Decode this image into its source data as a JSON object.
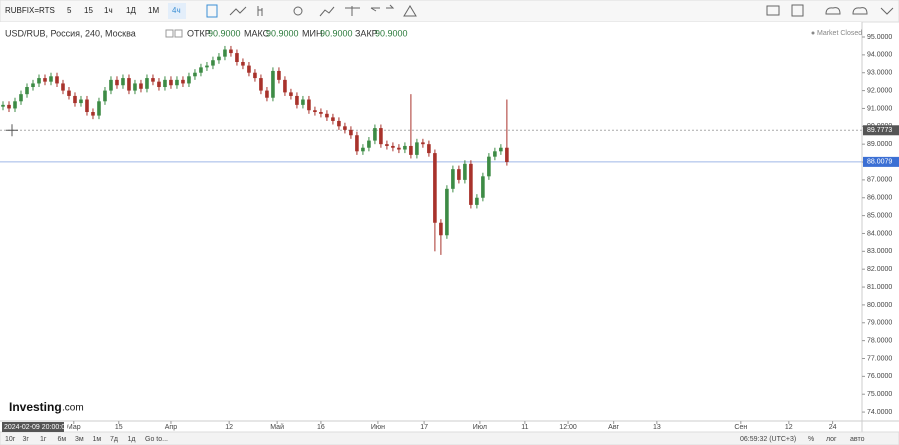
{
  "toolbar": {
    "symbol": "RUBFIX=RTS",
    "intervals": [
      "5",
      "15",
      "1ч",
      "1Д",
      "1М",
      "4ч"
    ]
  },
  "header": {
    "instrument": "USD/RUB, Россия, 240, Москва",
    "open_label": "ОТКР",
    "open": "90.9000",
    "high_label": "МАКС",
    "high": "90.9000",
    "low_label": "МИН",
    "low": "90.9000",
    "close_label": "ЗАКР",
    "close": "90.9000",
    "status": "Market Closed"
  },
  "footer": {
    "ranges": [
      "10г",
      "3г",
      "1г",
      "6м",
      "3м",
      "1м",
      "7д",
      "1д"
    ],
    "goto": "Go to...",
    "clock": "06:59:32 (UTC+3)",
    "percent": "%",
    "log": "лог",
    "auto": "авто"
  },
  "logo": {
    "name": "Investing",
    "suffix": ".com"
  },
  "chart_data": {
    "type": "candlestick",
    "open": [
      91.1,
      91.2,
      91.0,
      91.4,
      91.8,
      92.2,
      92.4,
      92.7,
      92.5,
      92.8,
      92.4,
      92.0,
      91.7,
      91.3,
      91.5,
      90.8,
      90.6,
      91.4,
      92.0,
      92.6,
      92.3,
      92.7,
      92.0,
      92.4,
      92.1,
      92.7,
      92.5,
      92.2,
      92.6,
      92.3,
      92.6,
      92.4,
      92.8,
      93.0,
      93.3,
      93.4,
      93.7,
      93.9,
      94.3,
      94.1,
      93.6,
      93.4,
      93.0,
      92.7,
      92.0,
      91.6,
      93.1,
      92.6,
      91.9,
      91.7,
      91.2,
      91.5,
      90.9,
      90.8,
      90.7,
      90.5,
      90.3,
      90.0,
      89.8,
      89.5,
      88.6,
      88.8,
      89.2,
      89.9,
      89.0,
      88.9,
      88.8,
      88.7,
      88.9,
      88.4,
      89.1,
      89.0,
      88.5,
      84.6,
      83.9,
      86.5,
      87.6,
      87.0,
      87.9,
      85.6,
      86.0,
      87.2,
      88.3,
      88.6,
      88.8
    ],
    "high": [
      91.4,
      91.4,
      91.6,
      92.0,
      92.4,
      92.6,
      92.9,
      92.9,
      93.0,
      93.0,
      92.6,
      92.2,
      91.9,
      91.7,
      91.7,
      91.0,
      91.6,
      92.2,
      92.8,
      92.8,
      92.9,
      92.9,
      92.6,
      92.6,
      92.9,
      92.9,
      92.7,
      92.8,
      92.8,
      92.8,
      92.8,
      93.0,
      93.2,
      93.5,
      93.6,
      93.9,
      94.1,
      94.5,
      94.5,
      94.3,
      93.8,
      93.6,
      93.2,
      92.9,
      92.2,
      93.3,
      93.3,
      92.8,
      92.1,
      91.9,
      91.7,
      91.7,
      91.1,
      91.0,
      90.9,
      90.7,
      90.5,
      90.2,
      90.0,
      89.7,
      89.0,
      89.4,
      90.1,
      90.1,
      89.2,
      89.1,
      89.0,
      89.1,
      91.8,
      89.3,
      89.3,
      89.2,
      88.7,
      84.8,
      86.7,
      87.8,
      87.8,
      88.1,
      88.1,
      86.2,
      87.4,
      88.5,
      88.8,
      89.0,
      91.5
    ],
    "low": [
      90.9,
      90.8,
      90.8,
      91.2,
      91.6,
      92.0,
      92.2,
      92.3,
      92.3,
      92.2,
      91.8,
      91.5,
      91.1,
      91.1,
      90.6,
      90.4,
      90.4,
      91.2,
      91.8,
      92.1,
      92.1,
      91.8,
      91.8,
      91.9,
      91.9,
      92.3,
      92.0,
      92.0,
      92.1,
      92.1,
      92.2,
      92.2,
      92.6,
      92.8,
      93.1,
      93.2,
      93.5,
      93.7,
      93.9,
      93.4,
      93.2,
      92.8,
      92.5,
      91.8,
      91.4,
      91.4,
      92.4,
      91.7,
      91.5,
      91.0,
      91.0,
      90.7,
      90.6,
      90.5,
      90.3,
      90.1,
      89.8,
      89.6,
      89.3,
      88.4,
      88.4,
      88.6,
      89.0,
      88.8,
      88.7,
      88.6,
      88.5,
      88.5,
      88.2,
      88.2,
      88.8,
      88.3,
      83.0,
      82.8,
      83.7,
      86.3,
      86.8,
      86.8,
      85.4,
      85.4,
      85.8,
      87.0,
      88.1,
      88.4,
      87.8
    ],
    "close": [
      91.2,
      91.0,
      91.4,
      91.8,
      92.2,
      92.4,
      92.7,
      92.5,
      92.8,
      92.4,
      92.0,
      91.7,
      91.3,
      91.5,
      90.8,
      90.6,
      91.4,
      92.0,
      92.6,
      92.3,
      92.7,
      92.0,
      92.4,
      92.1,
      92.7,
      92.5,
      92.2,
      92.6,
      92.3,
      92.6,
      92.4,
      92.8,
      93.0,
      93.3,
      93.4,
      93.7,
      93.9,
      94.3,
      94.1,
      93.6,
      93.4,
      93.0,
      92.7,
      92.0,
      91.6,
      93.1,
      92.6,
      91.9,
      91.7,
      91.2,
      91.5,
      90.9,
      90.8,
      90.7,
      90.5,
      90.3,
      90.0,
      89.8,
      89.5,
      88.6,
      88.8,
      89.2,
      89.9,
      89.0,
      88.9,
      88.8,
      88.7,
      88.9,
      88.4,
      89.1,
      89.0,
      88.5,
      84.6,
      83.9,
      86.5,
      87.6,
      87.0,
      87.9,
      85.6,
      86.0,
      87.2,
      88.3,
      88.6,
      88.8,
      88.0
    ],
    "up_color": "#3d8b45",
    "down_color": "#a8322b",
    "xlim": [
      -0.5,
      143.2
    ],
    "xticks": [
      {
        "value": 11.8,
        "label": "Мар"
      },
      {
        "value": 19.3,
        "label": "15"
      },
      {
        "value": 28,
        "label": "Апр"
      },
      {
        "value": 37.7,
        "label": "12"
      },
      {
        "value": 45.7,
        "label": "Май"
      },
      {
        "value": 53,
        "label": "16"
      },
      {
        "value": 62.5,
        "label": "Июн"
      },
      {
        "value": 70.2,
        "label": "17"
      },
      {
        "value": 79.5,
        "label": "Июл"
      },
      {
        "value": 87,
        "label": "11"
      },
      {
        "value": 94.2,
        "label": "12:00"
      },
      {
        "value": 101.8,
        "label": "Авг"
      },
      {
        "value": 109,
        "label": "13"
      },
      {
        "value": 123,
        "label": "Сен"
      },
      {
        "value": 131,
        "label": "12"
      },
      {
        "value": 138.3,
        "label": "24"
      }
    ],
    "ylim": [
      73.5,
      95.84
    ],
    "yticks": [
      {
        "value": 95,
        "label": "95.0000"
      },
      {
        "value": 94,
        "label": "94.0000"
      },
      {
        "value": 93,
        "label": "93.0000"
      },
      {
        "value": 92,
        "label": "92.0000"
      },
      {
        "value": 91,
        "label": "91.0000"
      },
      {
        "value": 90,
        "label": "90.0000"
      },
      {
        "value": 89,
        "label": "89.0000"
      },
      {
        "value": 88,
        "label": "88.0000"
      },
      {
        "value": 87,
        "label": "87.0000"
      },
      {
        "value": 86,
        "label": "86.0000"
      },
      {
        "value": 85,
        "label": "85.0000"
      },
      {
        "value": 84,
        "label": "84.0000"
      },
      {
        "value": 83,
        "label": "83.0000"
      },
      {
        "value": 82,
        "label": "82.0000"
      },
      {
        "value": 81,
        "label": "81.0000"
      },
      {
        "value": 80,
        "label": "80.0000"
      },
      {
        "value": 79,
        "label": "79.0000"
      },
      {
        "value": 78,
        "label": "78.0000"
      },
      {
        "value": 77,
        "label": "77.0000"
      },
      {
        "value": 76,
        "label": "76.0000"
      },
      {
        "value": 75,
        "label": "75.0000"
      },
      {
        "value": 74,
        "label": "74.0000"
      }
    ],
    "crosshair_price": 89.7773,
    "crosshair_time": "2024-02-09 20:00:00",
    "last_price": 88.0079
  }
}
